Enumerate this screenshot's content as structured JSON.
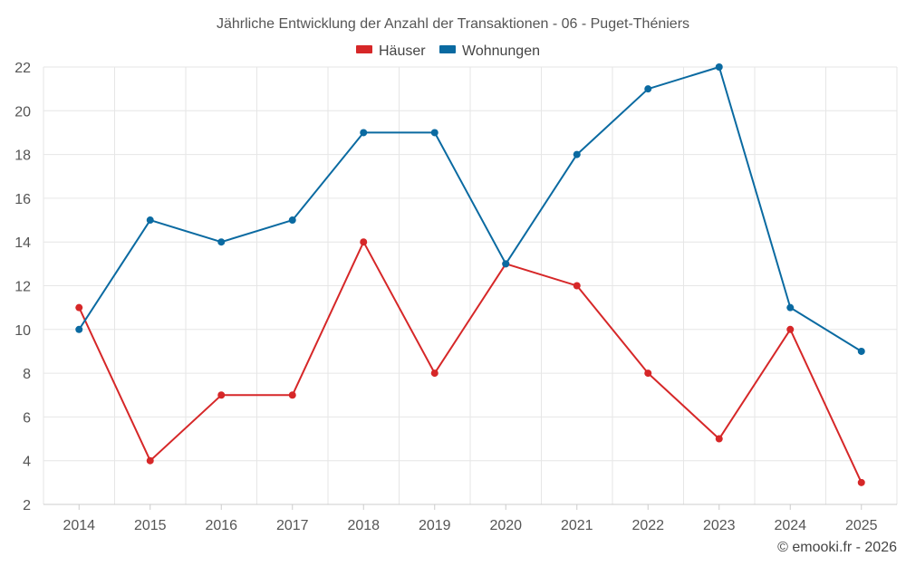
{
  "chart_data": {
    "type": "line",
    "title": "Jährliche Entwicklung der Anzahl der Transaktionen - 06 - Puget-Théniers",
    "xlabel": "",
    "ylabel": "",
    "categories": [
      "2014",
      "2015",
      "2016",
      "2017",
      "2018",
      "2019",
      "2020",
      "2021",
      "2022",
      "2023",
      "2024",
      "2025"
    ],
    "ylim": [
      2,
      22
    ],
    "yticks": [
      2,
      4,
      6,
      8,
      10,
      12,
      14,
      16,
      18,
      20,
      22
    ],
    "grid": true,
    "legend_position": "top-center",
    "series": [
      {
        "name": "Häuser",
        "color": "#d62728",
        "values": [
          11,
          4,
          7,
          7,
          14,
          8,
          13,
          12,
          8,
          5,
          10,
          3
        ]
      },
      {
        "name": "Wohnungen",
        "color": "#0a6aa1",
        "values": [
          10,
          15,
          14,
          15,
          19,
          19,
          13,
          18,
          21,
          22,
          11,
          9
        ]
      }
    ]
  },
  "credit": "© emooki.fr - 2026"
}
